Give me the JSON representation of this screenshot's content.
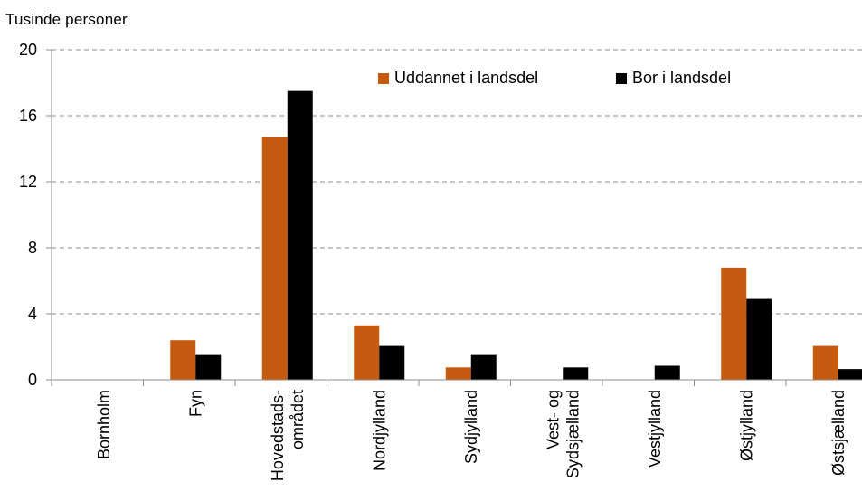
{
  "chart_data": {
    "type": "bar",
    "title": "",
    "unit_label": "Tusinde personer",
    "categories": [
      [
        "Bornholm"
      ],
      [
        "Fyn"
      ],
      [
        "Hovedstads-",
        "området"
      ],
      [
        "Nordjylland"
      ],
      [
        "Sydjylland"
      ],
      [
        "Vest- og",
        "Sydsjælland"
      ],
      [
        "Vestjylland"
      ],
      [
        "Østjylland"
      ],
      [
        "Østsjælland"
      ]
    ],
    "series": [
      {
        "name": "Uddannet i landsdel",
        "color": "#C55A11",
        "values": [
          0,
          2.4,
          14.7,
          3.3,
          0.75,
          0,
          0,
          6.8,
          2.05
        ]
      },
      {
        "name": "Bor i landsdel",
        "color": "#000000",
        "values": [
          0,
          1.5,
          17.5,
          2.05,
          1.5,
          0.75,
          0.85,
          4.9,
          0.65
        ]
      }
    ],
    "ylim": [
      0,
      20
    ],
    "yticks": [
      0,
      4,
      8,
      12,
      16,
      20
    ],
    "grid": true,
    "legend_position": "top-right"
  }
}
